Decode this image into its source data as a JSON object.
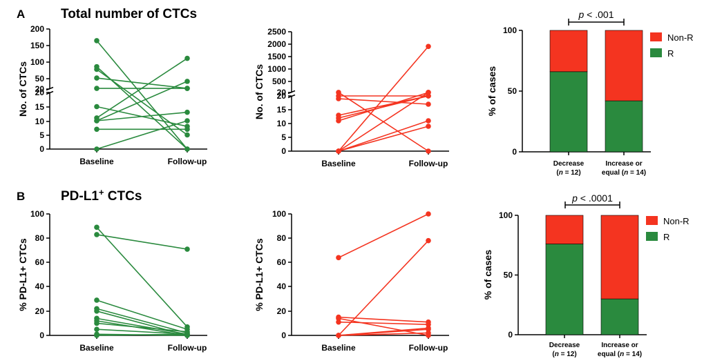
{
  "colors": {
    "green": "#2a8a3e",
    "red": "#f43420"
  },
  "panels": {
    "A": "A",
    "B": "B"
  },
  "titles": {
    "A": "Total number of CTCs",
    "B_main": "PD-L1",
    "B_sup": "+",
    "B_rest": " CTCs"
  },
  "chart_data": [
    {
      "id": "A-left",
      "type": "line",
      "series_color": "green",
      "ylabel": "No. of CTCs",
      "categories": [
        "Baseline",
        "Follow-up"
      ],
      "y_ticks": [
        "0",
        "5",
        "10",
        "15",
        "20",
        "20",
        "50",
        "100",
        "150",
        "200"
      ],
      "pairs": [
        [
          165,
          0
        ],
        [
          87,
          0
        ],
        [
          79,
          5
        ],
        [
          53,
          22
        ],
        [
          22,
          22
        ],
        [
          15,
          8
        ],
        [
          11,
          112
        ],
        [
          10,
          43
        ],
        [
          10,
          13
        ],
        [
          7,
          7
        ],
        [
          0,
          10
        ]
      ]
    },
    {
      "id": "A-middle",
      "type": "line",
      "series_color": "red",
      "ylabel": "No. of CTCs",
      "categories": [
        "Baseline",
        "Follow-up"
      ],
      "y_ticks": [
        "0",
        "5",
        "10",
        "15",
        "20",
        "20",
        "500",
        "1000",
        "1500",
        "2000",
        "2500"
      ],
      "pairs": [
        [
          21,
          0
        ],
        [
          20,
          20
        ],
        [
          19,
          17
        ],
        [
          13,
          20
        ],
        [
          12,
          20
        ],
        [
          11,
          21
        ],
        [
          0,
          1900
        ],
        [
          0,
          11
        ],
        [
          0,
          9
        ],
        [
          0,
          21
        ]
      ]
    },
    {
      "id": "A-right",
      "type": "bar",
      "stacked": true,
      "ylabel": "% of cases",
      "ylim": [
        0,
        100
      ],
      "y_ticks": [
        "0",
        "50",
        "100"
      ],
      "categories": [
        [
          "Decrease",
          "(n = 12)"
        ],
        [
          "Increase or",
          "equal (n = 14)"
        ]
      ],
      "series": [
        {
          "name": "R",
          "color": "green",
          "values": [
            66,
            42
          ]
        },
        {
          "name": "Non-R",
          "color": "red",
          "values": [
            34,
            58
          ]
        }
      ],
      "legend": [
        "Non-R",
        "R"
      ],
      "annotation": "p < .001"
    },
    {
      "id": "B-left",
      "type": "line",
      "series_color": "green",
      "ylabel": "% PD-L1+ CTCs",
      "categories": [
        "Baseline",
        "Follow-up"
      ],
      "ylim": [
        0,
        100
      ],
      "y_ticks": [
        "0",
        "20",
        "40",
        "60",
        "80",
        "100"
      ],
      "pairs": [
        [
          89,
          7
        ],
        [
          83,
          71
        ],
        [
          29,
          5
        ],
        [
          22,
          2
        ],
        [
          20,
          0
        ],
        [
          14,
          1
        ],
        [
          12,
          0
        ],
        [
          10,
          3
        ],
        [
          5,
          1
        ],
        [
          1,
          0
        ],
        [
          0,
          1
        ]
      ]
    },
    {
      "id": "B-middle",
      "type": "line",
      "series_color": "red",
      "ylabel": "% PD-L1+ CTCs",
      "categories": [
        "Baseline",
        "Follow-up"
      ],
      "ylim": [
        0,
        100
      ],
      "y_ticks": [
        "0",
        "20",
        "40",
        "60",
        "80",
        "100"
      ],
      "pairs": [
        [
          64,
          100
        ],
        [
          15,
          11
        ],
        [
          14,
          0
        ],
        [
          11,
          9
        ],
        [
          0,
          78
        ],
        [
          0,
          6
        ],
        [
          0,
          2
        ],
        [
          0,
          5
        ]
      ]
    },
    {
      "id": "B-right",
      "type": "bar",
      "stacked": true,
      "ylabel": "% of cases",
      "ylim": [
        0,
        100
      ],
      "y_ticks": [
        "0",
        "50",
        "100"
      ],
      "categories": [
        [
          "Decrease",
          "(n = 12)"
        ],
        [
          "Increase or",
          "equal (n = 14)"
        ]
      ],
      "series": [
        {
          "name": "R",
          "color": "green",
          "values": [
            76,
            30
          ]
        },
        {
          "name": "Non-R",
          "color": "red",
          "values": [
            24,
            70
          ]
        }
      ],
      "legend": [
        "Non-R",
        "R"
      ],
      "annotation": "p < .0001"
    }
  ]
}
